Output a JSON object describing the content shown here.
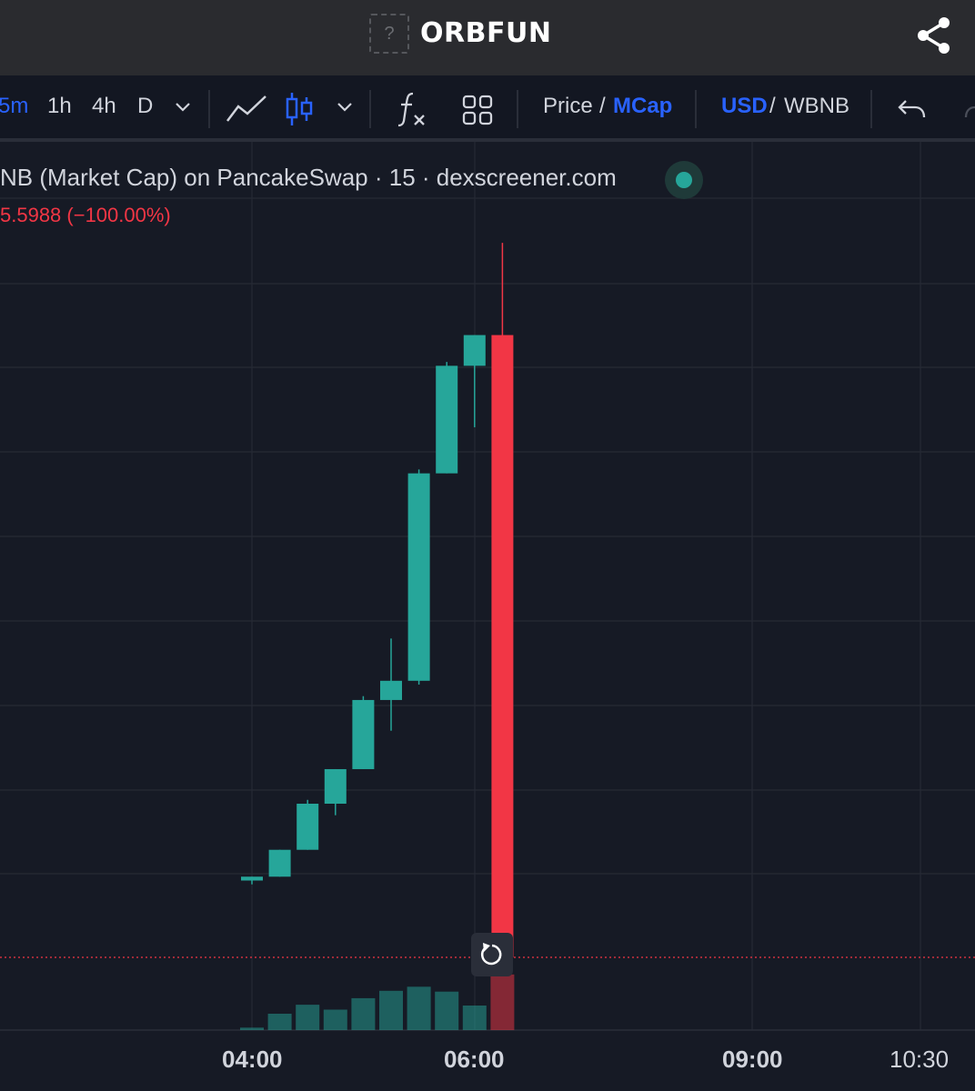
{
  "header": {
    "token_icon_placeholder": "?",
    "token_name": "ORBFUN",
    "share_icon": "share-icon"
  },
  "toolbar": {
    "intervals": [
      "5m",
      "1h",
      "4h",
      "D"
    ],
    "active_interval": "5m",
    "price_label": "Price",
    "mcap_label": "MCap",
    "active_value_mode": "MCap",
    "usd_label": "USD",
    "wbnb_label": "WBNB",
    "active_currency": "USD",
    "slash": "/"
  },
  "chart": {
    "legend_text": "NB (Market Cap) on PancakeSwap · 15 · dexscreener.com",
    "change_text": "5.5988 (−100.00%)",
    "x_labels": [
      "04:00",
      "06:00",
      "09:00",
      "10:30"
    ]
  },
  "colors": {
    "up": "#26a69a",
    "down": "#f23645",
    "accent": "#2962ff",
    "background": "#161a25"
  },
  "chart_data": {
    "type": "candlestick",
    "x_tick_labels": [
      "04:00",
      "06:00",
      "09:00",
      "10:30"
    ],
    "candles": [
      {
        "o": 1.0,
        "h": 1.05,
        "l": 0.95,
        "c": 1.05
      },
      {
        "o": 1.05,
        "h": 1.4,
        "l": 1.05,
        "c": 1.4
      },
      {
        "o": 1.4,
        "h": 2.05,
        "l": 1.4,
        "c": 2.0
      },
      {
        "o": 2.0,
        "h": 2.45,
        "l": 1.85,
        "c": 2.45
      },
      {
        "o": 2.45,
        "h": 3.4,
        "l": 2.45,
        "c": 3.35
      },
      {
        "o": 3.35,
        "h": 4.15,
        "l": 2.95,
        "c": 3.6
      },
      {
        "o": 3.6,
        "h": 6.35,
        "l": 3.55,
        "c": 6.3
      },
      {
        "o": 6.3,
        "h": 7.75,
        "l": 6.3,
        "c": 7.7
      },
      {
        "o": 7.7,
        "h": 8.1,
        "l": 6.9,
        "c": 8.1
      },
      {
        "o": 8.1,
        "h": 9.3,
        "l": 0.0,
        "c": 0.0
      }
    ],
    "volume": [
      0.15,
      1.0,
      1.55,
      1.25,
      1.95,
      2.4,
      2.65,
      2.35,
      1.5,
      3.4
    ],
    "grid": true,
    "price_line_color": "#f23645"
  }
}
